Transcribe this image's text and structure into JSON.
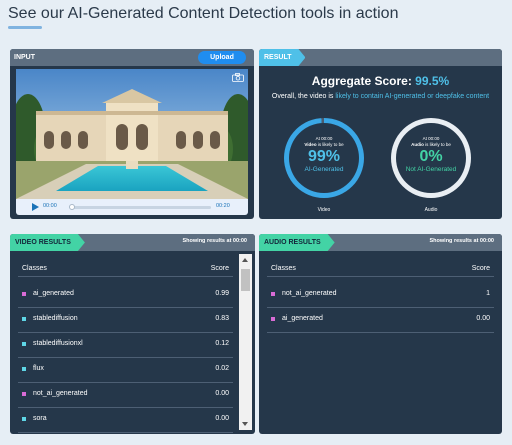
{
  "headline": "See our AI-Generated Content Detection tools in action",
  "input": {
    "tag": "INPUT",
    "upload_label": "Upload",
    "time_current": "00:00",
    "time_total": "00:20",
    "progress": 0
  },
  "result": {
    "tag": "RESULT",
    "aggregate_label": "Aggregate Score:",
    "aggregate_value": "99.5%",
    "summary_prefix": "Overall, the video is",
    "summary_highlight": "likely to contain AI-generated or deepfake content",
    "video_gauge": {
      "time": "At 00:00",
      "likely_prefix": "Video",
      "likely_suffix": "is likely to be",
      "percent": "99%",
      "label": "AI-Generated",
      "caption": "Video",
      "fill_fraction": 0.99,
      "color": "#3aa7e6"
    },
    "audio_gauge": {
      "time": "At 00:00",
      "likely_prefix": "Audio",
      "likely_suffix": "is likely to be",
      "percent": "0%",
      "label": "Not AI-Generated",
      "caption": "Audio",
      "fill_fraction": 1.0,
      "color": "#e9eef3"
    }
  },
  "video_results": {
    "tag": "VIDEO RESULTS",
    "showing": "Showing results at 00:00",
    "col_classes": "Classes",
    "col_score": "Score",
    "rows": [
      {
        "name": "ai_generated",
        "score": "0.99",
        "color": "#d86cd6"
      },
      {
        "name": "stablediffusion",
        "score": "0.83",
        "color": "#5fd6e6"
      },
      {
        "name": "stablediffusionxl",
        "score": "0.12",
        "color": "#5fd6e6"
      },
      {
        "name": "flux",
        "score": "0.02",
        "color": "#5fd6e6"
      },
      {
        "name": "not_ai_generated",
        "score": "0.00",
        "color": "#d86cd6"
      },
      {
        "name": "sora",
        "score": "0.00",
        "color": "#5fd6e6"
      }
    ]
  },
  "audio_results": {
    "tag": "AUDIO RESULTS",
    "showing": "Showing results at 00:00",
    "col_classes": "Classes",
    "col_score": "Score",
    "rows": [
      {
        "name": "not_ai_generated",
        "score": "1",
        "color": "#d86cd6"
      },
      {
        "name": "ai_generated",
        "score": "0.00",
        "color": "#d86cd6"
      }
    ]
  },
  "colors": {
    "accent": "#4fc0e8",
    "green_tag": "#43d3a5",
    "panel": "#25374a",
    "upload": "#1f8df0"
  },
  "icons": [
    "camera-icon",
    "play-icon"
  ]
}
